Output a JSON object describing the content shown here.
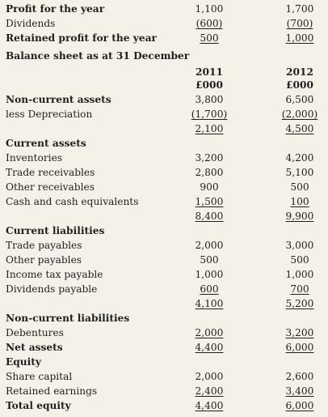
{
  "income": {
    "profit": {
      "label": "Profit for the year",
      "v2011": "1,100",
      "v2012": "1,700"
    },
    "dividends": {
      "label": "Dividends",
      "v2011": "(600)",
      "v2012": "(700)"
    },
    "retained": {
      "label": "Retained profit for the year",
      "v2011": "500",
      "v2012": "1,000"
    }
  },
  "balance_title": "Balance sheet as at 31 December",
  "headers": {
    "year1": "2011",
    "year2": "2012",
    "unit": "£000"
  },
  "noncurrent": {
    "assets": {
      "label": "Non-current assets",
      "v2011": "3,800",
      "v2012": "6,500"
    },
    "depreciation": {
      "label": "less Depreciation",
      "v2011": "(1,700)",
      "v2012": "(2,000)"
    },
    "net": {
      "v2011": "2,100",
      "v2012": "4,500"
    }
  },
  "current_assets": {
    "title": "Current assets",
    "items": [
      {
        "label": "Inventories",
        "v2011": "3,200",
        "v2012": "4,200"
      },
      {
        "label": "Trade receivables",
        "v2011": "2,800",
        "v2012": "5,100"
      },
      {
        "label": "Other receivables",
        "v2011": "900",
        "v2012": "500"
      },
      {
        "label": "Cash and cash equivalents",
        "v2011": "1,500",
        "v2012": "100"
      }
    ],
    "total": {
      "v2011": "8,400",
      "v2012": "9,900"
    }
  },
  "current_liabilities": {
    "title": "Current liabilities",
    "items": [
      {
        "label": "Trade payables",
        "v2011": "2,000",
        "v2012": "3,000"
      },
      {
        "label": "Other payables",
        "v2011": "500",
        "v2012": "500"
      },
      {
        "label": "Income tax payable",
        "v2011": "1,000",
        "v2012": "1,000"
      },
      {
        "label": "Dividends payable",
        "v2011": "600",
        "v2012": "700"
      }
    ],
    "total": {
      "v2011": "4,100",
      "v2012": "5,200"
    }
  },
  "noncurrent_liabilities": {
    "title": "Non-current liabilities",
    "debentures": {
      "label": "Debentures",
      "v2011": "2,000",
      "v2012": "3,200"
    }
  },
  "net_assets": {
    "label": "Net assets",
    "v2011": "4,400",
    "v2012": "6,000"
  },
  "equity": {
    "title": "Equity",
    "share_capital": {
      "label": "Share capital",
      "v2011": "2,000",
      "v2012": "2,600"
    },
    "retained_earnings": {
      "label": "Retained earnings",
      "v2011": "2,400",
      "v2012": "3,400"
    },
    "total": {
      "label": "Total equity",
      "v2011": "4,400",
      "v2012": "6,000"
    }
  }
}
